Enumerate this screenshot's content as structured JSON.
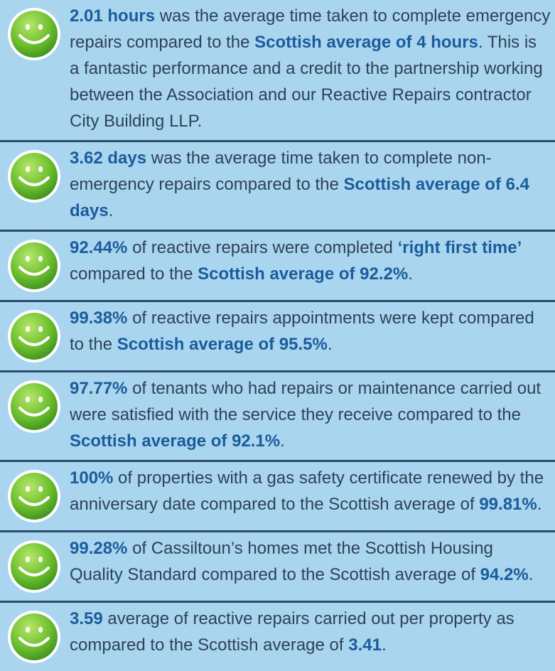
{
  "items": [
    {
      "segments": [
        {
          "text": "2.01 hours",
          "bold": true
        },
        {
          "text": " was the average time taken to complete emergency repairs compared to the ",
          "bold": false
        },
        {
          "text": "Scottish average of 4 hours",
          "bold": true
        },
        {
          "text": ". This is a fantastic performance and a credit to the partnership working between the Association and our Reactive Repairs contractor City Building LLP.",
          "bold": false
        }
      ]
    },
    {
      "segments": [
        {
          "text": "3.62 days",
          "bold": true
        },
        {
          "text": " was the average time taken to complete non-emergency repairs compared to the ",
          "bold": false
        },
        {
          "text": "Scottish average of 6.4 days",
          "bold": true
        },
        {
          "text": ".",
          "bold": false
        }
      ]
    },
    {
      "segments": [
        {
          "text": "92.44%",
          "bold": true
        },
        {
          "text": " of reactive repairs were completed ",
          "bold": false
        },
        {
          "text": "‘right first time’",
          "bold": true
        },
        {
          "text": " compared to the ",
          "bold": false
        },
        {
          "text": "Scottish average of 92.2%",
          "bold": true
        },
        {
          "text": ".",
          "bold": false
        }
      ]
    },
    {
      "segments": [
        {
          "text": "99.38%",
          "bold": true
        },
        {
          "text": " of reactive repairs appointments were kept compared to the ",
          "bold": false
        },
        {
          "text": "Scottish average of 95.5%",
          "bold": true
        },
        {
          "text": ".",
          "bold": false
        }
      ]
    },
    {
      "segments": [
        {
          "text": "97.77%",
          "bold": true
        },
        {
          "text": " of tenants who had repairs or maintenance carried out were satisfied with the service they receive compared to the ",
          "bold": false
        },
        {
          "text": "Scottish average of 92.1%",
          "bold": true
        },
        {
          "text": ".",
          "bold": false
        }
      ]
    },
    {
      "segments": [
        {
          "text": "100%",
          "bold": true
        },
        {
          "text": " of properties with a gas safety certificate renewed by the anniversary date compared to the Scottish average of ",
          "bold": false
        },
        {
          "text": "99.81%",
          "bold": true
        },
        {
          "text": ".",
          "bold": false
        }
      ]
    },
    {
      "segments": [
        {
          "text": "99.28%",
          "bold": true
        },
        {
          "text": " of Cassiltoun’s homes met the Scottish Housing Quality Standard compared to the Scottish average of ",
          "bold": false
        },
        {
          "text": "94.2%",
          "bold": true
        },
        {
          "text": ".",
          "bold": false
        }
      ]
    },
    {
      "segments": [
        {
          "text": "3.59",
          "bold": true
        },
        {
          "text": " average of reactive repairs carried out per property as compared to the Scottish average of ",
          "bold": false
        },
        {
          "text": "3.41",
          "bold": true
        },
        {
          "text": ".",
          "bold": false
        }
      ]
    }
  ]
}
